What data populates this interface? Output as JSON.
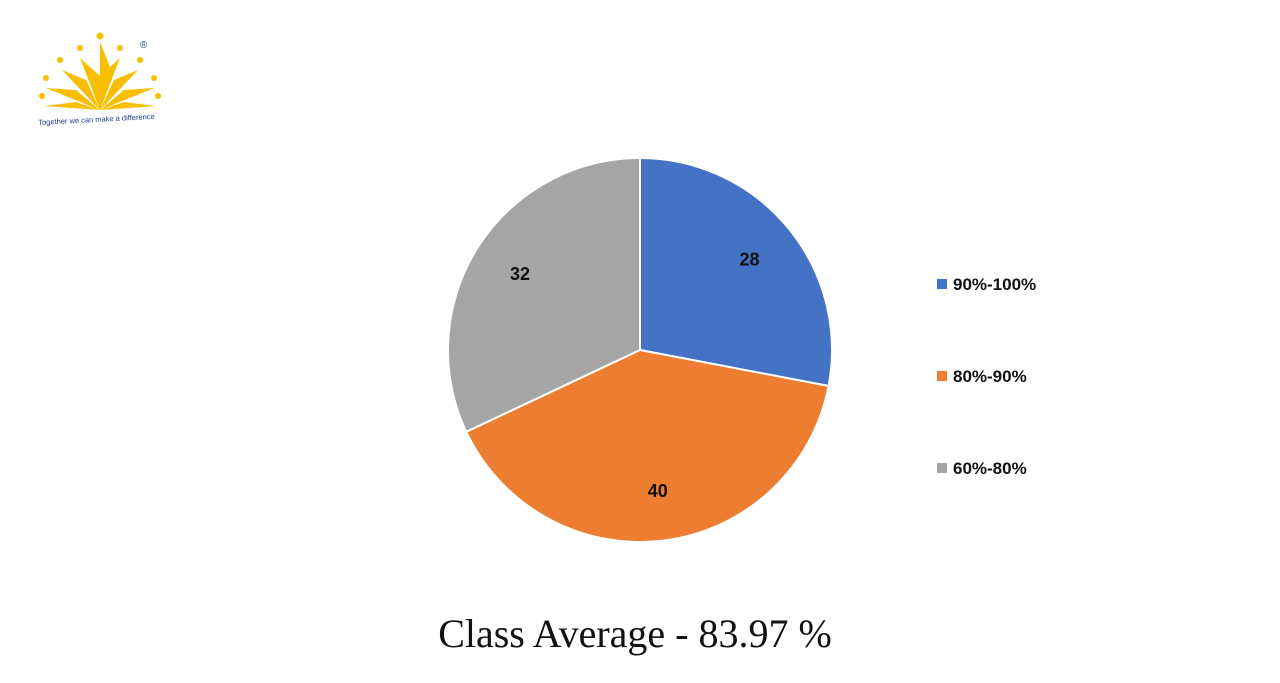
{
  "logo": {
    "tagline": "Together we can make a difference",
    "registered_mark": "®",
    "colors": {
      "rays": "#f7bf00",
      "dots": "#f7bf00"
    }
  },
  "caption": "Class Average - 83.97 %",
  "chart_data": {
    "type": "pie",
    "title": "",
    "legend_position": "right",
    "slices": [
      {
        "label": "90%-100%",
        "value": 28,
        "color": "#4472c4"
      },
      {
        "label": "80%-90%",
        "value": 40,
        "color": "#ed7d31"
      },
      {
        "label": "60%-80%",
        "value": 32,
        "color": "#a5a5a5"
      }
    ]
  }
}
